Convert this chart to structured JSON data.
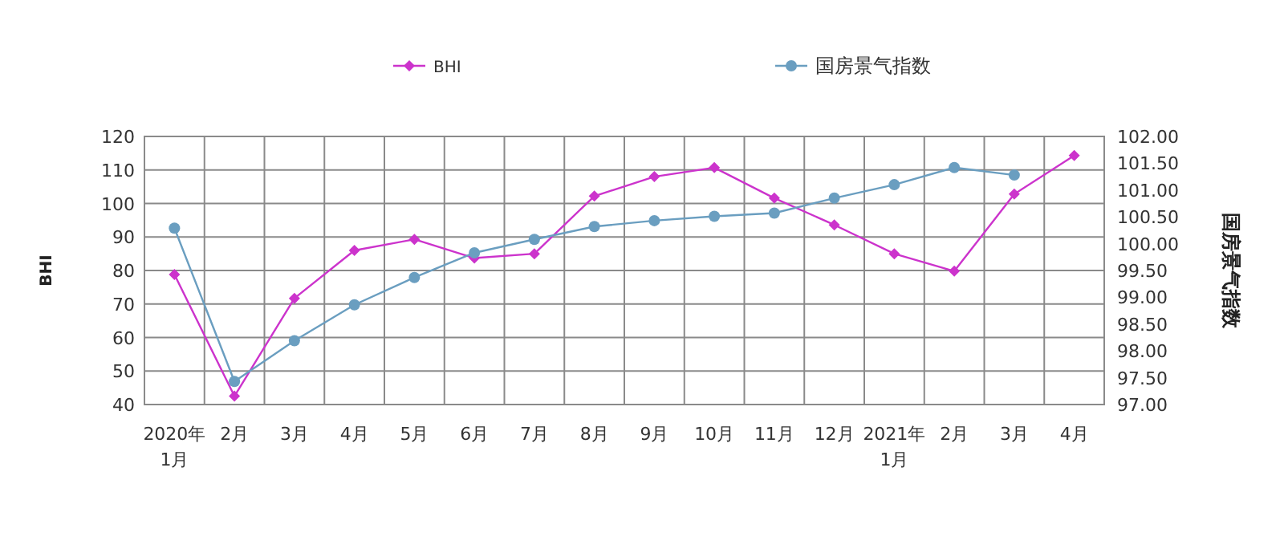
{
  "chart_data": {
    "type": "line",
    "ylabel": "BHI",
    "y2label": "国房景气指数",
    "categories": [
      "2020年\n1月",
      "2月",
      "3月",
      "4月",
      "5月",
      "6月",
      "7月",
      "8月",
      "9月",
      "10月",
      "11月",
      "12月",
      "2021年\n1月",
      "2月",
      "3月",
      "4月"
    ],
    "series": [
      {
        "name": "BHI",
        "color": "#cc33cc",
        "marker": "diamond",
        "values": [
          78.8,
          42.5,
          71.7,
          86,
          89.3,
          83.7,
          85,
          102.2,
          108,
          110.7,
          101.6,
          93.6,
          85,
          79.8,
          102.8,
          114.3
        ]
      },
      {
        "name": "国房景气指数",
        "color": "#6a9ec0",
        "marker": "circle",
        "axis": "y2",
        "values": [
          100.29,
          97.43,
          98.19,
          98.86,
          99.37,
          99.83,
          100.08,
          100.32,
          100.43,
          100.51,
          100.57,
          100.85,
          101.1,
          101.42,
          101.28,
          null
        ]
      }
    ],
    "ylim": [
      40,
      120
    ],
    "yticks": [
      40,
      50,
      60,
      70,
      80,
      90,
      100,
      110,
      120
    ],
    "y2lim": [
      97,
      102
    ],
    "y2ticks": [
      {
        "value": 97,
        "label": "97.00"
      },
      {
        "value": 97.5,
        "label": "97.50"
      },
      {
        "value": 98,
        "label": "98.00"
      },
      {
        "value": 98.5,
        "label": "98.50"
      },
      {
        "value": 99,
        "label": "99.00"
      },
      {
        "value": 99.5,
        "label": "99.50"
      },
      {
        "value": 100,
        "label": "100.00"
      },
      {
        "value": 100.5,
        "label": "100.50"
      },
      {
        "value": 101,
        "label": "101.00"
      },
      {
        "value": 101.5,
        "label": "101.50"
      },
      {
        "value": 102,
        "label": "102.00"
      }
    ],
    "grid": true,
    "legend": "top"
  }
}
